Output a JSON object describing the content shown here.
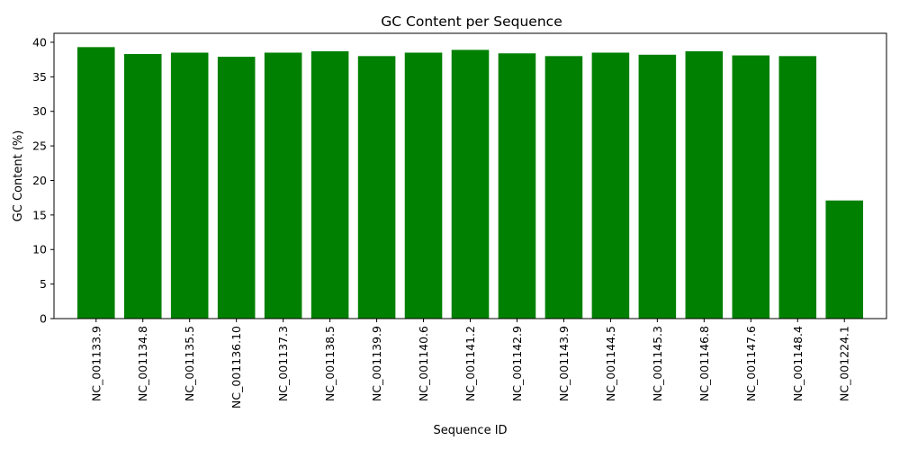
{
  "chart_data": {
    "type": "bar",
    "title": "GC Content per Sequence",
    "xlabel": "Sequence ID",
    "ylabel": "GC Content (%)",
    "categories": [
      "NC_001133.9",
      "NC_001134.8",
      "NC_001135.5",
      "NC_001136.10",
      "NC_001137.3",
      "NC_001138.5",
      "NC_001139.9",
      "NC_001140.6",
      "NC_001141.2",
      "NC_001142.9",
      "NC_001143.9",
      "NC_001144.5",
      "NC_001145.3",
      "NC_001146.8",
      "NC_001147.6",
      "NC_001148.4",
      "NC_001224.1"
    ],
    "values": [
      39.3,
      38.3,
      38.5,
      37.9,
      38.5,
      38.7,
      38.0,
      38.5,
      38.9,
      38.4,
      38.0,
      38.5,
      38.2,
      38.7,
      38.1,
      38.0,
      17.1
    ],
    "ylim": [
      0,
      41.3
    ],
    "yticks": [
      0,
      5,
      10,
      15,
      20,
      25,
      30,
      35,
      40
    ],
    "grid": false,
    "legend": "none",
    "bar_color": "#008000"
  }
}
